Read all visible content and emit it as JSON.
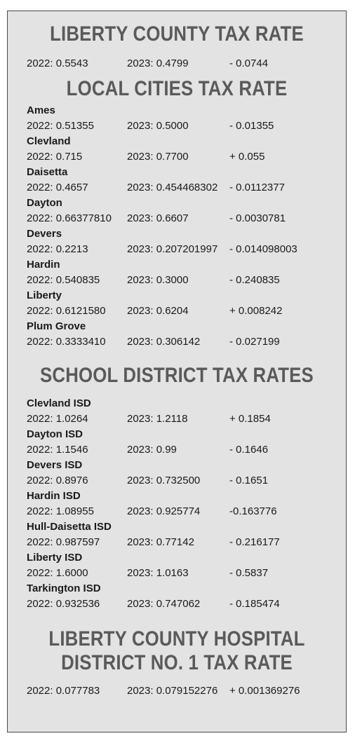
{
  "county": {
    "heading": "LIBERTY COUNTY TAX RATE",
    "rate_2022": "2022: 0.5543",
    "rate_2023": "2023: 0.4799",
    "change": "- 0.0744"
  },
  "cities": {
    "heading": "LOCAL CITIES TAX RATE",
    "items": [
      {
        "name": "Ames",
        "rate_2022": "2022: 0.51355",
        "rate_2023": "2023: 0.5000",
        "change": "- 0.01355"
      },
      {
        "name": "Clevland",
        "rate_2022": "2022: 0.715",
        "rate_2023": "2023: 0.7700",
        "change": "+ 0.055"
      },
      {
        "name": "Daisetta",
        "rate_2022": "2022: 0.4657",
        "rate_2023": "2023: 0.454468302",
        "change": "- 0.0112377"
      },
      {
        "name": "Dayton",
        "rate_2022": "2022: 0.66377810",
        "rate_2023": "2023: 0.6607",
        "change": "- 0.0030781"
      },
      {
        "name": "Devers",
        "rate_2022": "2022: 0.2213",
        "rate_2023": "2023: 0.207201997",
        "change": "- 0.014098003"
      },
      {
        "name": "Hardin",
        "rate_2022": "2022: 0.540835",
        "rate_2023": "2023: 0.3000",
        "change": "- 0.240835"
      },
      {
        "name": "Liberty",
        "rate_2022": "2022: 0.6121580",
        "rate_2023": "2023: 0.6204",
        "change": "+ 0.008242"
      },
      {
        "name": "Plum Grove",
        "rate_2022": "2022: 0.3333410",
        "rate_2023": "2023: 0.306142",
        "change": "- 0.027199"
      }
    ]
  },
  "schools": {
    "heading": "SCHOOL DISTRICT TAX RATES",
    "items": [
      {
        "name": "Clevland ISD",
        "rate_2022": "2022: 1.0264",
        "rate_2023": "2023: 1.2118",
        "change": "+ 0.1854"
      },
      {
        "name": "Dayton ISD",
        "rate_2022": "2022: 1.1546",
        "rate_2023": "2023: 0.99",
        "change": "- 0.1646"
      },
      {
        "name": "Devers ISD",
        "rate_2022": "2022: 0.8976",
        "rate_2023": "2023: 0.732500",
        "change": "- 0.1651"
      },
      {
        "name": "Hardin ISD",
        "rate_2022": "2022: 1.08955",
        "rate_2023": "2023: 0.925774",
        "change": "-0.163776"
      },
      {
        "name": "Hull-Daisetta ISD",
        "rate_2022": "2022: 0.987597",
        "rate_2023": "2023: 0.77142",
        "change": "- 0.216177"
      },
      {
        "name": "Liberty ISD",
        "rate_2022": "2022: 1.6000",
        "rate_2023": "2023: 1.0163",
        "change": "- 0.5837"
      },
      {
        "name": "Tarkington ISD",
        "rate_2022": "2022: 0.932536",
        "rate_2023": "2023: 0.747062",
        "change": "- 0.185474"
      }
    ]
  },
  "hospital": {
    "heading_line1": "LIBERTY COUNTY HOSPITAL",
    "heading_line2": "DISTRICT NO. 1 TAX RATE",
    "rate_2022": "2022: 0.077783",
    "rate_2023": "2023: 0.079152276",
    "change": "+ 0.001369276"
  }
}
